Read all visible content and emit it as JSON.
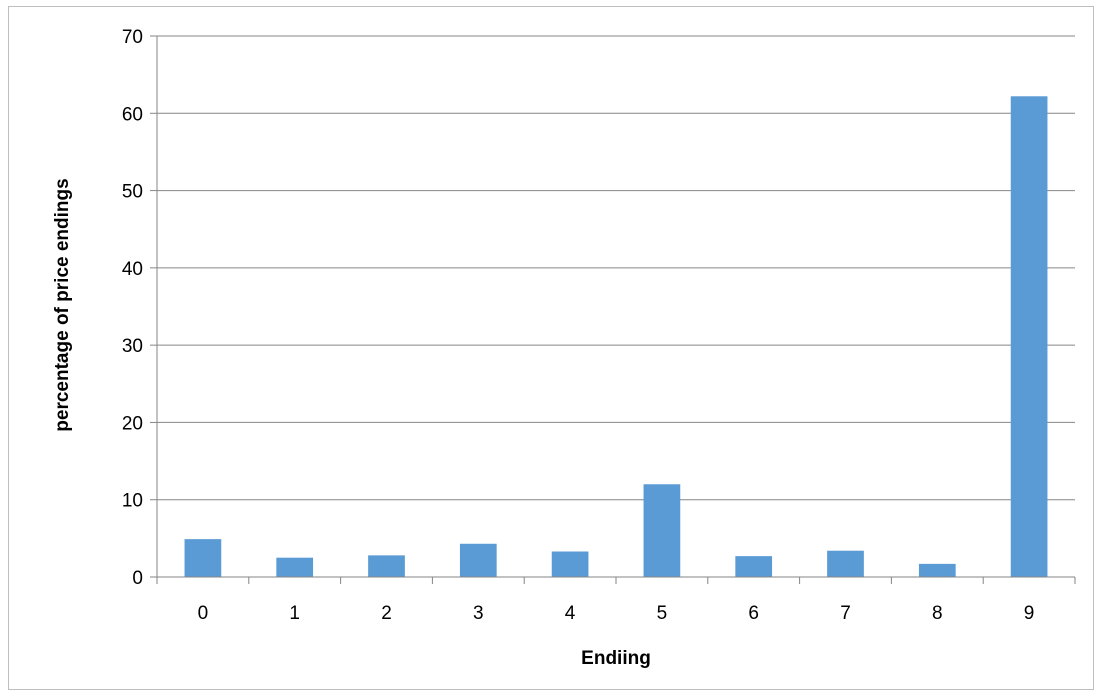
{
  "chart_data": {
    "type": "bar",
    "title": "",
    "xlabel": "Endiing",
    "ylabel": "percentage of price endings",
    "categories": [
      "0",
      "1",
      "2",
      "3",
      "4",
      "5",
      "6",
      "7",
      "8",
      "9"
    ],
    "series": [
      {
        "values": [
          4.9,
          2.5,
          2.8,
          4.3,
          3.3,
          12.0,
          2.7,
          3.4,
          1.7,
          62.2
        ]
      }
    ],
    "ylim": [
      0,
      70
    ],
    "yticks": [
      0,
      10,
      20,
      30,
      40,
      50,
      60,
      70
    ],
    "grid": true,
    "legend": "none",
    "colors": {
      "bar": "#5b9bd5",
      "grid": "#868686",
      "axis": "#868686"
    }
  }
}
